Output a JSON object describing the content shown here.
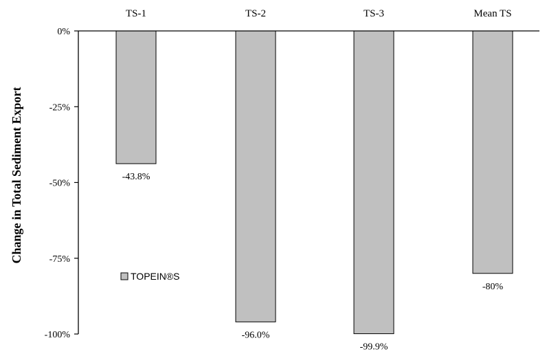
{
  "chart_data": {
    "type": "bar",
    "categories": [
      "TS-1",
      "TS-2",
      "TS-3",
      "Mean TS"
    ],
    "series": [
      {
        "name": "TOPEIN®S",
        "values": [
          -43.8,
          -96.0,
          -99.9,
          -80
        ]
      }
    ],
    "data_labels": [
      "-43.8%",
      "-96.0%",
      "-99.9%",
      "-80%"
    ],
    "ylabel": "Change in Total Sediment Export",
    "xlabel": "",
    "ylim": [
      -100,
      0
    ],
    "yticks": [
      0,
      -25,
      -50,
      -75,
      -100
    ],
    "ytick_labels": [
      "0%",
      "-25%",
      "-50%",
      "-75%",
      "-100%"
    ],
    "category_axis_position": "top",
    "grid": false,
    "legend_position": "lower-left",
    "bar_color": "#c0c0c0"
  }
}
